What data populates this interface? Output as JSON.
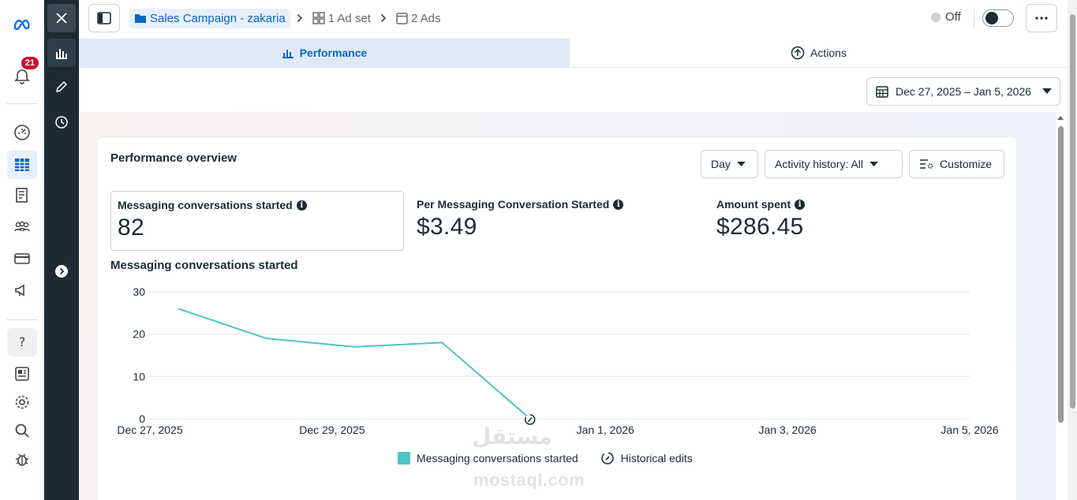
{
  "colors": {
    "accent": "#0a66c2",
    "series": "#4fc3c8",
    "dark_strip": "#1c2b33",
    "badge": "#c8102e"
  },
  "rail": {
    "notification_count": "21",
    "icons": [
      "meta-logo-icon",
      "bell-icon",
      "dashboard-icon",
      "table-icon",
      "pages-icon",
      "audience-icon",
      "billing-card-icon",
      "megaphone-icon",
      "help-icon",
      "news-icon",
      "settings-gear-icon",
      "search-icon",
      "bug-icon"
    ]
  },
  "breadcrumb": {
    "campaign": "Sales Campaign - zakaria",
    "adset": "1 Ad set",
    "ads": "2 Ads"
  },
  "status": {
    "label": "Off"
  },
  "tabs": {
    "performance": "Performance",
    "actions": "Actions"
  },
  "date_range": {
    "label": "Dec 27, 2025 – Jan 5, 2026"
  },
  "overview": {
    "title": "Performance overview",
    "day_label": "Day",
    "activity_label": "Activity history: All",
    "customize_label": "Customize"
  },
  "metrics": [
    {
      "label": "Messaging conversations started",
      "value": "82"
    },
    {
      "label": "Per Messaging Conversation Started",
      "value": "$3.49"
    },
    {
      "label": "Amount spent",
      "value": "$286.45"
    }
  ],
  "chart_data": {
    "type": "line",
    "title": "Messaging conversations started",
    "x": [
      "Dec 27, 2025",
      "Dec 28, 2025",
      "Dec 29, 2025",
      "Dec 30, 2025",
      "Dec 31, 2025"
    ],
    "x_ticks": [
      "Dec 27, 2025",
      "Dec 29, 2025",
      "Jan 1, 2026",
      "Jan 3, 2026",
      "Jan 5, 2026"
    ],
    "series": [
      {
        "name": "Messaging conversations started",
        "values": [
          26,
          19,
          17,
          18,
          0
        ]
      }
    ],
    "ylim": [
      0,
      30
    ],
    "y_ticks": [
      0,
      10,
      20,
      30
    ],
    "grid": true,
    "legend": "bottom",
    "legend_extra": "Historical edits"
  },
  "watermark": {
    "arabic": "مستقل",
    "latin": "mostaql.com"
  }
}
